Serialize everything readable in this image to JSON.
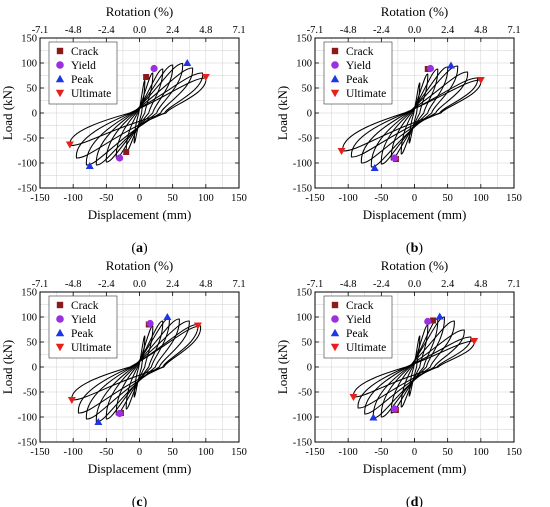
{
  "figure": {
    "top_axis_label": "Rotation (%)",
    "x_axis_label": "Displacement (mm)",
    "y_axis_label": "Load (kN)",
    "x_ticks": [
      "-150",
      "-100",
      "-50",
      "0",
      "50",
      "100",
      "150"
    ],
    "y_ticks": [
      "-150",
      "-100",
      "-50",
      "0",
      "50",
      "100",
      "150"
    ],
    "top_ticks": [
      "-7.1",
      "-4.8",
      "-2.4",
      "0.0",
      "2.4",
      "4.8",
      "7.1"
    ],
    "legend": [
      {
        "label": "Crack",
        "marker": "square",
        "color": "#8b1a1a"
      },
      {
        "label": "Yield",
        "marker": "circle",
        "color": "#9b30e0"
      },
      {
        "label": "Peak",
        "marker": "triangle-up",
        "color": "#1f35e6"
      },
      {
        "label": "Ultimate",
        "marker": "triangle-down",
        "color": "#e8201c"
      }
    ],
    "colors": {
      "curve": "#000000",
      "grid": "#cfcfcf",
      "frame": "#000000"
    }
  },
  "chart_data": [
    {
      "type": "scatter",
      "caption_letter": "a",
      "x_axis": "Displacement (mm)",
      "y_axis": "Load (kN)",
      "xlim": [
        -150,
        150
      ],
      "ylim": [
        -150,
        150
      ],
      "top_axis": "Rotation (%)",
      "grid": true,
      "legend_position": "top-left",
      "hysteresis": {
        "pos_peak": [
          [
            8,
            65
          ],
          [
            20,
            80
          ],
          [
            35,
            88
          ],
          [
            50,
            96
          ],
          [
            65,
            99
          ],
          [
            80,
            90
          ],
          [
            95,
            80
          ],
          [
            100,
            70
          ]
        ],
        "neg_peak": [
          [
            -8,
            -60
          ],
          [
            -20,
            -78
          ],
          [
            -35,
            -90
          ],
          [
            -50,
            -98
          ],
          [
            -65,
            -104
          ],
          [
            -80,
            -104
          ],
          [
            -95,
            -90
          ],
          [
            -105,
            -65
          ]
        ]
      },
      "points": [
        {
          "series": "Crack",
          "x": 10,
          "y": 72
        },
        {
          "series": "Crack",
          "x": -20,
          "y": -78
        },
        {
          "series": "Yield",
          "x": 22,
          "y": 89
        },
        {
          "series": "Yield",
          "x": -30,
          "y": -90
        },
        {
          "series": "Peak",
          "x": 72,
          "y": 100
        },
        {
          "series": "Peak",
          "x": -75,
          "y": -106
        },
        {
          "series": "Ultimate",
          "x": 100,
          "y": 72
        },
        {
          "series": "Ultimate",
          "x": -105,
          "y": -63
        }
      ]
    },
    {
      "type": "scatter",
      "caption_letter": "b",
      "x_axis": "Displacement (mm)",
      "y_axis": "Load (kN)",
      "xlim": [
        -150,
        150
      ],
      "ylim": [
        -150,
        150
      ],
      "top_axis": "Rotation (%)",
      "grid": true,
      "legend_position": "top-left",
      "hysteresis": {
        "pos_peak": [
          [
            8,
            60
          ],
          [
            20,
            78
          ],
          [
            35,
            88
          ],
          [
            50,
            92
          ],
          [
            65,
            94
          ],
          [
            80,
            82
          ],
          [
            95,
            70
          ],
          [
            100,
            66
          ]
        ],
        "neg_peak": [
          [
            -8,
            -60
          ],
          [
            -20,
            -82
          ],
          [
            -35,
            -94
          ],
          [
            -50,
            -102
          ],
          [
            -65,
            -108
          ],
          [
            -80,
            -100
          ],
          [
            -95,
            -88
          ],
          [
            -108,
            -76
          ]
        ]
      },
      "points": [
        {
          "series": "Crack",
          "x": 20,
          "y": 88
        },
        {
          "series": "Crack",
          "x": -28,
          "y": -92
        },
        {
          "series": "Yield",
          "x": 24,
          "y": 89
        },
        {
          "series": "Yield",
          "x": -30,
          "y": -90
        },
        {
          "series": "Peak",
          "x": 55,
          "y": 95
        },
        {
          "series": "Peak",
          "x": -60,
          "y": -110
        },
        {
          "series": "Ultimate",
          "x": 100,
          "y": 66
        },
        {
          "series": "Ultimate",
          "x": -110,
          "y": -76
        }
      ]
    },
    {
      "type": "scatter",
      "caption_letter": "c",
      "x_axis": "Displacement (mm)",
      "y_axis": "Load (kN)",
      "xlim": [
        -150,
        150
      ],
      "ylim": [
        -150,
        150
      ],
      "top_axis": "Rotation (%)",
      "grid": true,
      "legend_position": "top-left",
      "hysteresis": {
        "pos_peak": [
          [
            8,
            62
          ],
          [
            20,
            82
          ],
          [
            35,
            92
          ],
          [
            45,
            98
          ],
          [
            60,
            96
          ],
          [
            75,
            92
          ],
          [
            88,
            85
          ],
          [
            92,
            82
          ]
        ],
        "neg_peak": [
          [
            -8,
            -60
          ],
          [
            -20,
            -84
          ],
          [
            -35,
            -96
          ],
          [
            -50,
            -104
          ],
          [
            -65,
            -110
          ],
          [
            -80,
            -104
          ],
          [
            -92,
            -92
          ],
          [
            -102,
            -66
          ]
        ]
      },
      "points": [
        {
          "series": "Crack",
          "x": 14,
          "y": 85
        },
        {
          "series": "Crack",
          "x": -28,
          "y": -92
        },
        {
          "series": "Yield",
          "x": 16,
          "y": 87
        },
        {
          "series": "Yield",
          "x": -30,
          "y": -93
        },
        {
          "series": "Peak",
          "x": 42,
          "y": 100
        },
        {
          "series": "Peak",
          "x": -62,
          "y": -110
        },
        {
          "series": "Ultimate",
          "x": 88,
          "y": 83
        },
        {
          "series": "Ultimate",
          "x": -102,
          "y": -66
        }
      ]
    },
    {
      "type": "scatter",
      "caption_letter": "d",
      "x_axis": "Displacement (mm)",
      "y_axis": "Load (kN)",
      "xlim": [
        -150,
        150
      ],
      "ylim": [
        -150,
        150
      ],
      "top_axis": "Rotation (%)",
      "grid": true,
      "legend_position": "top-left",
      "hysteresis": {
        "pos_peak": [
          [
            8,
            62
          ],
          [
            20,
            84
          ],
          [
            35,
            96
          ],
          [
            45,
            100
          ],
          [
            60,
            92
          ],
          [
            75,
            74
          ],
          [
            85,
            60
          ],
          [
            90,
            52
          ]
        ],
        "neg_peak": [
          [
            -8,
            -58
          ],
          [
            -20,
            -80
          ],
          [
            -35,
            -92
          ],
          [
            -50,
            -100
          ],
          [
            -62,
            -102
          ],
          [
            -75,
            -94
          ],
          [
            -85,
            -82
          ],
          [
            -92,
            -60
          ]
        ]
      },
      "points": [
        {
          "series": "Crack",
          "x": 28,
          "y": 93
        },
        {
          "series": "Crack",
          "x": -28,
          "y": -86
        },
        {
          "series": "Yield",
          "x": 20,
          "y": 91
        },
        {
          "series": "Yield",
          "x": -30,
          "y": -84
        },
        {
          "series": "Peak",
          "x": 38,
          "y": 101
        },
        {
          "series": "Peak",
          "x": -62,
          "y": -101
        },
        {
          "series": "Ultimate",
          "x": 90,
          "y": 52
        },
        {
          "series": "Ultimate",
          "x": -92,
          "y": -60
        }
      ]
    }
  ]
}
